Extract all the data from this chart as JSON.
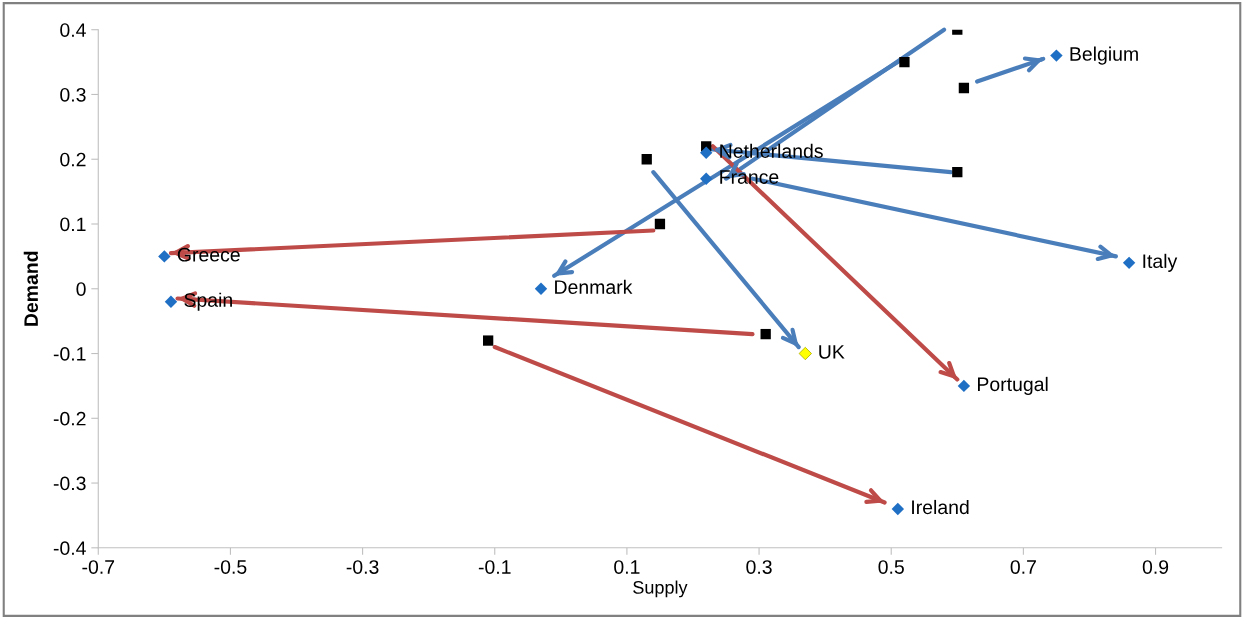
{
  "chart_data": {
    "type": "scatter",
    "xlabel": "Supply",
    "ylabel": "Demand",
    "xlim": [
      -0.7,
      1.0
    ],
    "ylim": [
      -0.4,
      0.4
    ],
    "xticks": [
      -0.7,
      -0.5,
      -0.3,
      -0.1,
      0.1,
      0.3,
      0.5,
      0.7,
      0.9
    ],
    "yticks": [
      -0.4,
      -0.3,
      -0.2,
      -0.1,
      0,
      0.1,
      0.2,
      0.3,
      0.4
    ],
    "grid": false,
    "legend": false,
    "series": [
      {
        "marker": "square",
        "color": "#000000",
        "x": [
          0.6,
          0.52,
          0.61,
          0.6,
          0.22,
          0.13,
          0.15,
          0.31,
          -0.11
        ],
        "values": [
          0.4,
          0.35,
          0.31,
          0.18,
          0.22,
          0.2,
          0.1,
          -0.07,
          -0.08
        ]
      },
      {
        "marker": "diamond",
        "colors": [
          "#1f6fc5",
          "#1f6fc5",
          "#1f6fc5",
          "#1f6fc5",
          "#ffff00",
          "#1f6fc5",
          "#1f6fc5",
          "#1f6fc5",
          "#1f6fc5",
          "#1f6fc5"
        ],
        "x": [
          0.75,
          0.86,
          0.61,
          0.51,
          0.37,
          -0.03,
          -0.6,
          -0.59,
          0.22,
          0.22
        ],
        "values": [
          0.36,
          0.04,
          -0.15,
          -0.34,
          -0.1,
          0.0,
          0.05,
          -0.02,
          0.21,
          0.17
        ]
      },
      {
        "type": "line",
        "color": "#4a7ebb",
        "x": [
          0.63,
          0.73
        ],
        "values": [
          0.32,
          0.355
        ]
      },
      {
        "type": "line",
        "color": "#4a7ebb",
        "x": [
          0.58,
          0.25
        ],
        "values": [
          0.4,
          0.17
        ]
      },
      {
        "type": "line",
        "color": "#4a7ebb",
        "x": [
          0.51,
          -0.01
        ],
        "values": [
          0.35,
          0.02
        ]
      },
      {
        "type": "line",
        "color": "#4a7ebb",
        "x": [
          0.59,
          0.23
        ],
        "values": [
          0.18,
          0.215
        ]
      },
      {
        "type": "line",
        "color": "#4a7ebb",
        "x": [
          0.29,
          0.84
        ],
        "values": [
          0.17,
          0.05
        ]
      },
      {
        "type": "line",
        "color": "#4a7ebb",
        "x": [
          0.14,
          0.36
        ],
        "values": [
          0.18,
          -0.09
        ]
      },
      {
        "type": "line",
        "color": "#be4b48",
        "x": [
          0.23,
          0.6
        ],
        "values": [
          0.22,
          -0.14
        ]
      },
      {
        "type": "line",
        "color": "#be4b48",
        "x": [
          0.14,
          -0.59
        ],
        "values": [
          0.09,
          0.055
        ]
      },
      {
        "type": "line",
        "color": "#be4b48",
        "x": [
          0.29,
          -0.58
        ],
        "values": [
          -0.07,
          -0.015
        ]
      },
      {
        "type": "line",
        "color": "#be4b48",
        "x": [
          -0.1,
          0.49
        ],
        "values": [
          -0.09,
          -0.33
        ]
      }
    ],
    "annotations": [
      {
        "text": "Belgium",
        "x": 0.75,
        "y": 0.36
      },
      {
        "text": "Italy",
        "x": 0.86,
        "y": 0.04
      },
      {
        "text": "Portugal",
        "x": 0.61,
        "y": -0.15
      },
      {
        "text": "Ireland",
        "x": 0.51,
        "y": -0.34
      },
      {
        "text": "UK",
        "x": 0.37,
        "y": -0.1
      },
      {
        "text": "Denmark",
        "x": -0.03,
        "y": 0.0
      },
      {
        "text": "Greece",
        "x": -0.6,
        "y": 0.05
      },
      {
        "text": "Spain",
        "x": -0.59,
        "y": -0.02
      },
      {
        "text": "Netherlands",
        "x": 0.22,
        "y": 0.21
      },
      {
        "text": "France",
        "x": 0.22,
        "y": 0.17
      }
    ]
  }
}
